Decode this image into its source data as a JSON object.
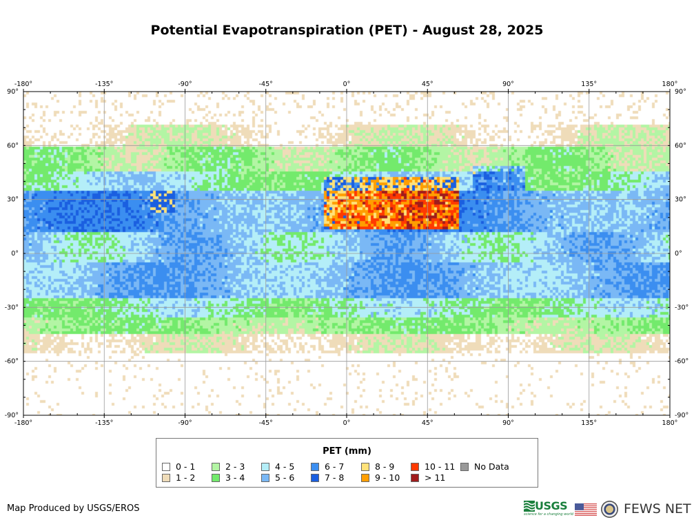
{
  "title": "Potential Evapotranspiration (PET) - August 28, 2025",
  "map": {
    "lon_ticks": [
      "-180°",
      "-135°",
      "-90°",
      "-45°",
      "0°",
      "45°",
      "90°",
      "135°",
      "180°"
    ],
    "lat_ticks": [
      "90°",
      "60°",
      "30°",
      "0°",
      "-30°",
      "-60°",
      "-90°"
    ],
    "lon_range": [
      -180,
      180
    ],
    "lat_range": [
      -90,
      90
    ]
  },
  "legend": {
    "title": "PET (mm)",
    "items": [
      {
        "label": "0 - 1",
        "color": "#ffffff"
      },
      {
        "label": "1 - 2",
        "color": "#efdcb9"
      },
      {
        "label": "2 - 3",
        "color": "#b3f5a4"
      },
      {
        "label": "3 - 4",
        "color": "#73ea6c"
      },
      {
        "label": "4 - 5",
        "color": "#b4eef8"
      },
      {
        "label": "5 - 6",
        "color": "#7ab8f5"
      },
      {
        "label": "6 - 7",
        "color": "#3b8ef0"
      },
      {
        "label": "7 - 8",
        "color": "#1a5fe0"
      },
      {
        "label": "8 - 9",
        "color": "#ffe27a"
      },
      {
        "label": "9 - 10",
        "color": "#ff9e00"
      },
      {
        "label": "10 - 11",
        "color": "#ff3a00"
      },
      {
        "label": "> 11",
        "color": "#a01c1c"
      },
      {
        "label": "No Data",
        "color": "#999999"
      }
    ]
  },
  "credit": "Map Produced by USGS/EROS",
  "logos": {
    "usgs": "USGS",
    "usgs_tagline": "science for a changing world",
    "fews": "FEWS NET"
  }
}
